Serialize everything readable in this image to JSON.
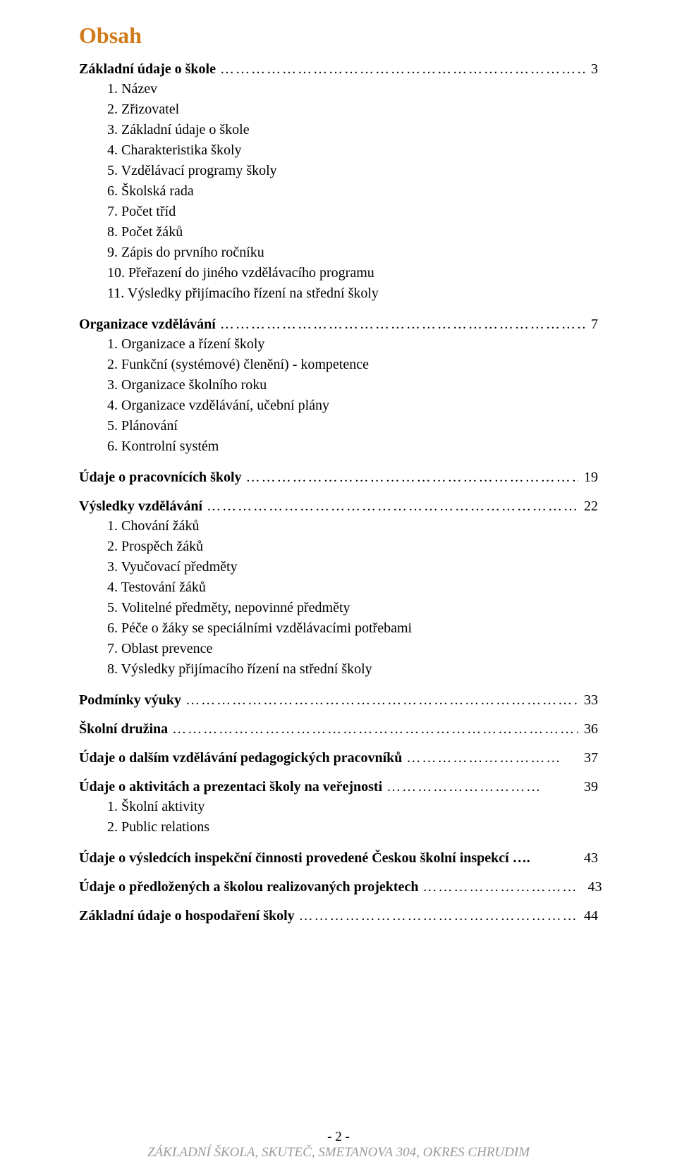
{
  "title": {
    "text": "Obsah",
    "color": "#d17a1a"
  },
  "leader_dots": "…………………………………………………………………………………………………………………………",
  "leader_dots_short": "…………………………",
  "sections": [
    {
      "heading": "Základní údaje o škole",
      "page": "3",
      "leader": "long",
      "items": [
        "1. Název",
        "2. Zřizovatel",
        "3. Základní údaje o škole",
        "4. Charakteristika školy",
        "5. Vzdělávací programy školy",
        "6. Školská rada",
        "7. Počet tříd",
        "8. Počet žáků",
        "9. Zápis do prvního ročníku",
        "10. Přeřazení do jiného vzdělávacího programu",
        "11. Výsledky přijímacího řízení na střední školy"
      ]
    },
    {
      "heading": "Organizace vzdělávání",
      "page": "7",
      "leader": "long",
      "items": [
        "1. Organizace a řízení školy",
        "2. Funkční (systémové) členění) - kompetence",
        "3. Organizace školního roku",
        "4. Organizace vzdělávání, učební plány",
        "5. Plánování",
        "6. Kontrolní systém"
      ]
    },
    {
      "heading": "Údaje o pracovnících školy",
      "page": "19",
      "leader": "long",
      "items": []
    },
    {
      "heading": "Výsledky vzdělávání",
      "page": "22",
      "leader": "long",
      "items": [
        "1. Chování žáků",
        "2. Prospěch žáků",
        "3. Vyučovací předměty",
        "4. Testování žáků",
        "5. Volitelné předměty, nepovinné předměty",
        "6. Péče o žáky se speciálními vzdělávacími potřebami",
        "7. Oblast prevence",
        "8. Výsledky přijímacího řízení na střední školy"
      ]
    },
    {
      "heading": "Podmínky výuky",
      "page": "33",
      "leader": "long",
      "items": []
    },
    {
      "heading": "Školní družina",
      "page": "36",
      "leader": "long",
      "items": []
    },
    {
      "heading": "Údaje o dalším vzdělávání pedagogických pracovníků",
      "page": "37",
      "leader": "short",
      "items": []
    },
    {
      "heading": "Údaje o aktivitách a prezentaci školy na veřejnosti",
      "page": "39",
      "leader": "short",
      "items": [
        "1. Školní aktivity",
        "2. Public relations"
      ]
    },
    {
      "heading": "Údaje o výsledcích inspekční činnosti provedené Českou školní inspekcí ….",
      "page": "43",
      "leader": "none",
      "items": []
    },
    {
      "heading": "Údaje o předložených a školou realizovaných projektech",
      "page": "43",
      "leader": "short",
      "items": []
    },
    {
      "heading": "Základní údaje o hospodaření školy",
      "page": "44",
      "leader": "long",
      "items": []
    }
  ],
  "footer": {
    "page_marker": "- 2 -",
    "school": "ZÁKLADNÍ ŠKOLA, SKUTEČ, SMETANOVA 304, OKRES CHRUDIM"
  }
}
